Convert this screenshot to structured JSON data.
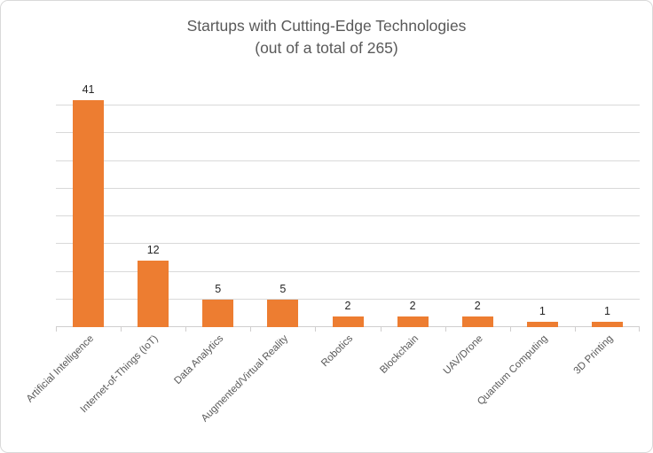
{
  "chart": {
    "frame_border_color": "#D9D9D9",
    "background_color": "#FFFFFF"
  },
  "chart_data": {
    "type": "bar",
    "title": "Startups with Cutting-Edge Technologies",
    "subtitle": "(out of a total of 265)",
    "total_mentioned_in_subtitle": 265,
    "categories": [
      "Artificial Intelligence",
      "Internet-of-Things (IoT)",
      "Data Analytics",
      "Augmented/Virtual Reality",
      "Robotics",
      "Blockchain",
      "UAV/Drone",
      "Quantum Computing",
      "3D Printing"
    ],
    "values": [
      41,
      12,
      5,
      5,
      2,
      2,
      2,
      1,
      1
    ],
    "data_labels": true,
    "legend": "none",
    "grid": true,
    "y_axis_labels_visible": false,
    "y_gridline_step": 5,
    "y_gridline_max": 40,
    "ylim": [
      0,
      41
    ],
    "x_tick_label_rotation_deg": 45,
    "bar_color": "#ED7D31",
    "gridline_color": "#D9D9D9",
    "axis_color": "#D0CECE",
    "title_color": "#595959",
    "category_label_color": "#595959",
    "value_label_color": "#262626"
  }
}
